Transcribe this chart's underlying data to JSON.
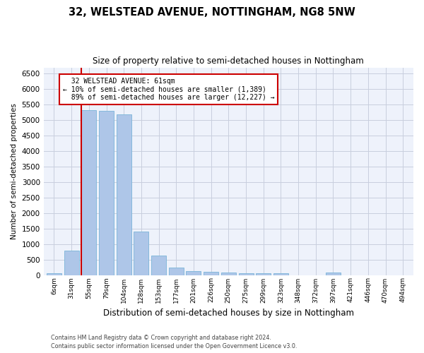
{
  "title": "32, WELSTEAD AVENUE, NOTTINGHAM, NG8 5NW",
  "subtitle": "Size of property relative to semi-detached houses in Nottingham",
  "xlabel": "Distribution of semi-detached houses by size in Nottingham",
  "ylabel": "Number of semi-detached properties",
  "categories": [
    "6sqm",
    "31sqm",
    "55sqm",
    "79sqm",
    "104sqm",
    "128sqm",
    "153sqm",
    "177sqm",
    "201sqm",
    "226sqm",
    "250sqm",
    "275sqm",
    "299sqm",
    "323sqm",
    "348sqm",
    "372sqm",
    "397sqm",
    "421sqm",
    "446sqm",
    "470sqm",
    "494sqm"
  ],
  "values": [
    50,
    790,
    5320,
    5290,
    5190,
    1400,
    630,
    250,
    135,
    100,
    80,
    65,
    55,
    50,
    0,
    0,
    80,
    0,
    0,
    0,
    0
  ],
  "bar_color": "#aec6e8",
  "bar_edge_color": "#7ab4d8",
  "property_sqm": 61,
  "property_label": "32 WELSTEAD AVENUE: 61sqm",
  "smaller_pct": "10%",
  "smaller_count": "1,389",
  "larger_pct": "89%",
  "larger_count": "12,227",
  "annotation_box_color": "#ffffff",
  "annotation_box_edge": "#cc0000",
  "red_line_color": "#cc0000",
  "ylim": [
    0,
    6700
  ],
  "yticks": [
    0,
    500,
    1000,
    1500,
    2000,
    2500,
    3000,
    3500,
    4000,
    4500,
    5000,
    5500,
    6000,
    6500
  ],
  "footer_line1": "Contains HM Land Registry data © Crown copyright and database right 2024.",
  "footer_line2": "Contains public sector information licensed under the Open Government Licence v3.0.",
  "bg_color": "#eef2fb",
  "grid_color": "#c8cede"
}
